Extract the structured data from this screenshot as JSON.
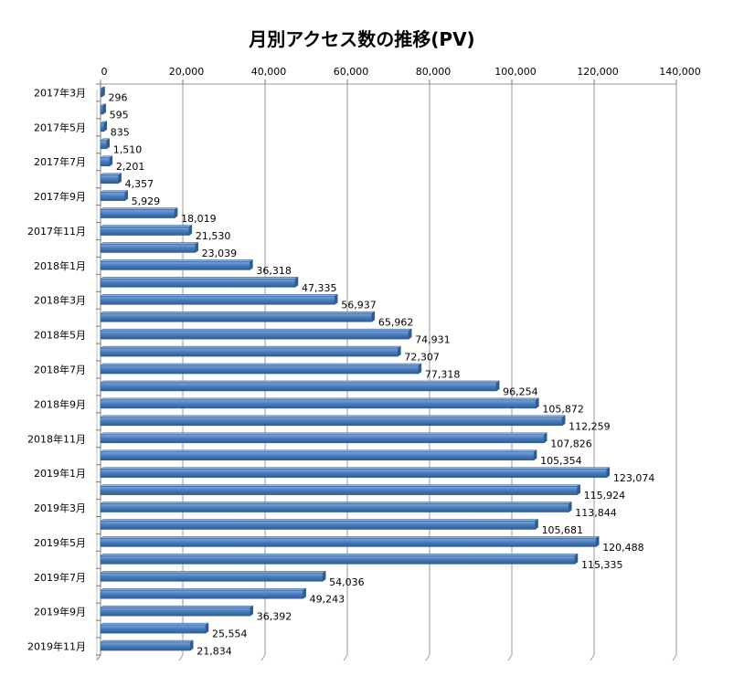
{
  "chart_data": {
    "type": "bar",
    "orientation": "horizontal",
    "title": "月別アクセス数の推移(PV)",
    "xlabel": "",
    "ylabel": "",
    "xlim": [
      0,
      140000
    ],
    "ticks": [
      0,
      20000,
      40000,
      60000,
      80000,
      100000,
      120000,
      140000
    ],
    "tick_labels": [
      "0",
      "20,000",
      "40,000",
      "60,000",
      "80,000",
      "100,000",
      "120,000",
      "140,000"
    ],
    "axis_position": "top",
    "grid": true,
    "legend": false,
    "bar_color": "#4a7ebf",
    "categories": [
      "2017年3月",
      "2017年4月",
      "2017年5月",
      "2017年6月",
      "2017年7月",
      "2017年8月",
      "2017年9月",
      "2017年10月",
      "2017年11月",
      "2017年12月",
      "2018年1月",
      "2018年2月",
      "2018年3月",
      "2018年4月",
      "2018年5月",
      "2018年6月",
      "2018年7月",
      "2018年8月",
      "2018年9月",
      "2018年10月",
      "2018年11月",
      "2018年12月",
      "2019年1月",
      "2019年2月",
      "2019年3月",
      "2019年4月",
      "2019年5月",
      "2019年6月",
      "2019年7月",
      "2019年8月",
      "2019年9月",
      "2019年10月",
      "2019年11月"
    ],
    "category_shown": [
      true,
      false,
      true,
      false,
      true,
      false,
      true,
      false,
      true,
      false,
      true,
      false,
      true,
      false,
      true,
      false,
      true,
      false,
      true,
      false,
      true,
      false,
      true,
      false,
      true,
      false,
      true,
      false,
      true,
      false,
      true,
      false,
      true
    ],
    "values": [
      296,
      595,
      835,
      1510,
      2201,
      4357,
      5929,
      18019,
      21530,
      23039,
      36318,
      47335,
      56937,
      65962,
      74931,
      72307,
      77318,
      96254,
      105872,
      112259,
      107826,
      105354,
      123074,
      115924,
      113844,
      105681,
      120488,
      115335,
      54036,
      49243,
      36392,
      25554,
      21834
    ],
    "value_labels": [
      "296",
      "595",
      "835",
      "1,510",
      "2,201",
      "4,357",
      "5,929",
      "18,019",
      "21,530",
      "23,039",
      "36,318",
      "47,335",
      "56,937",
      "65,962",
      "74,931",
      "72,307",
      "77,318",
      "96,254",
      "105,872",
      "112,259",
      "107,826",
      "105,354",
      "123,074",
      "115,924",
      "113,844",
      "105,681",
      "120,488",
      "115,335",
      "54,036",
      "49,243",
      "36,392",
      "25,554",
      "21,834"
    ]
  }
}
